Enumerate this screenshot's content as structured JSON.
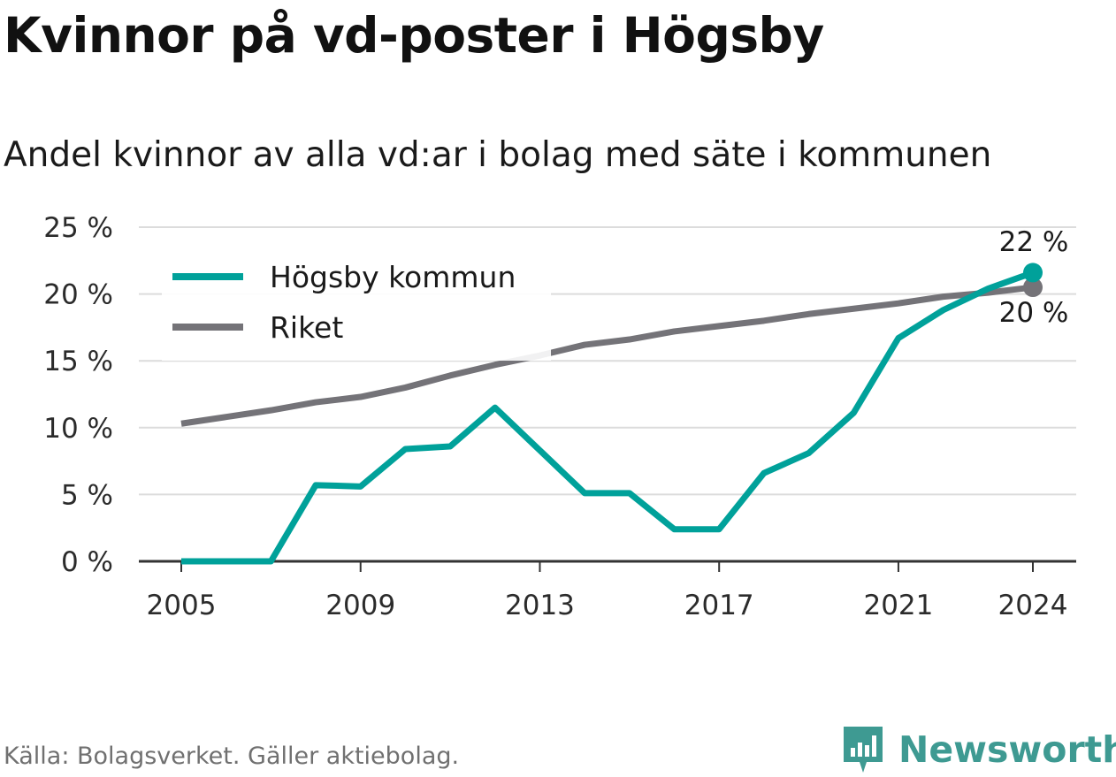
{
  "title": "Kvinnor på vd-poster i Högsby",
  "subtitle": "Andel kvinnor av alla vd:ar i bolag med säte i kommunen",
  "source": "Källa: Bolagsverket. Gäller aktiebolag.",
  "brand": {
    "name": "Newsworthy",
    "color": "#3e9a92"
  },
  "chart_data": {
    "type": "line",
    "x": [
      2005,
      2006,
      2007,
      2008,
      2009,
      2010,
      2011,
      2012,
      2013,
      2014,
      2015,
      2016,
      2017,
      2018,
      2019,
      2020,
      2021,
      2022,
      2023,
      2024
    ],
    "series": [
      {
        "name": "Högsby kommun",
        "color": "#00a19a",
        "values": [
          0,
          0,
          0,
          5.7,
          5.6,
          8.4,
          8.6,
          11.5,
          8.3,
          5.1,
          5.1,
          2.4,
          2.4,
          6.6,
          8.1,
          11.1,
          16.7,
          18.8,
          20.4,
          21.6
        ],
        "end_label": "22 %"
      },
      {
        "name": "Riket",
        "color": "#747378",
        "values": [
          10.3,
          10.8,
          11.3,
          11.9,
          12.3,
          13.0,
          13.9,
          14.7,
          15.4,
          16.2,
          16.6,
          17.2,
          17.6,
          18.0,
          18.5,
          18.9,
          19.3,
          19.8,
          20.1,
          20.5
        ],
        "end_label": "20 %"
      }
    ],
    "y_ticks": [
      0,
      5,
      10,
      15,
      20,
      25
    ],
    "y_tick_labels": [
      "0 %",
      "5 %",
      "10 %",
      "15 %",
      "20 %",
      "25 %"
    ],
    "x_ticks": [
      2005,
      2009,
      2013,
      2017,
      2021,
      2024
    ],
    "x_tick_labels": [
      "2005",
      "2009",
      "2013",
      "2017",
      "2021",
      "2024"
    ],
    "ylim": [
      0,
      25
    ],
    "xlim": [
      2005,
      2024
    ],
    "grid": true,
    "legend": "top-left",
    "xlabel": "",
    "ylabel": ""
  }
}
